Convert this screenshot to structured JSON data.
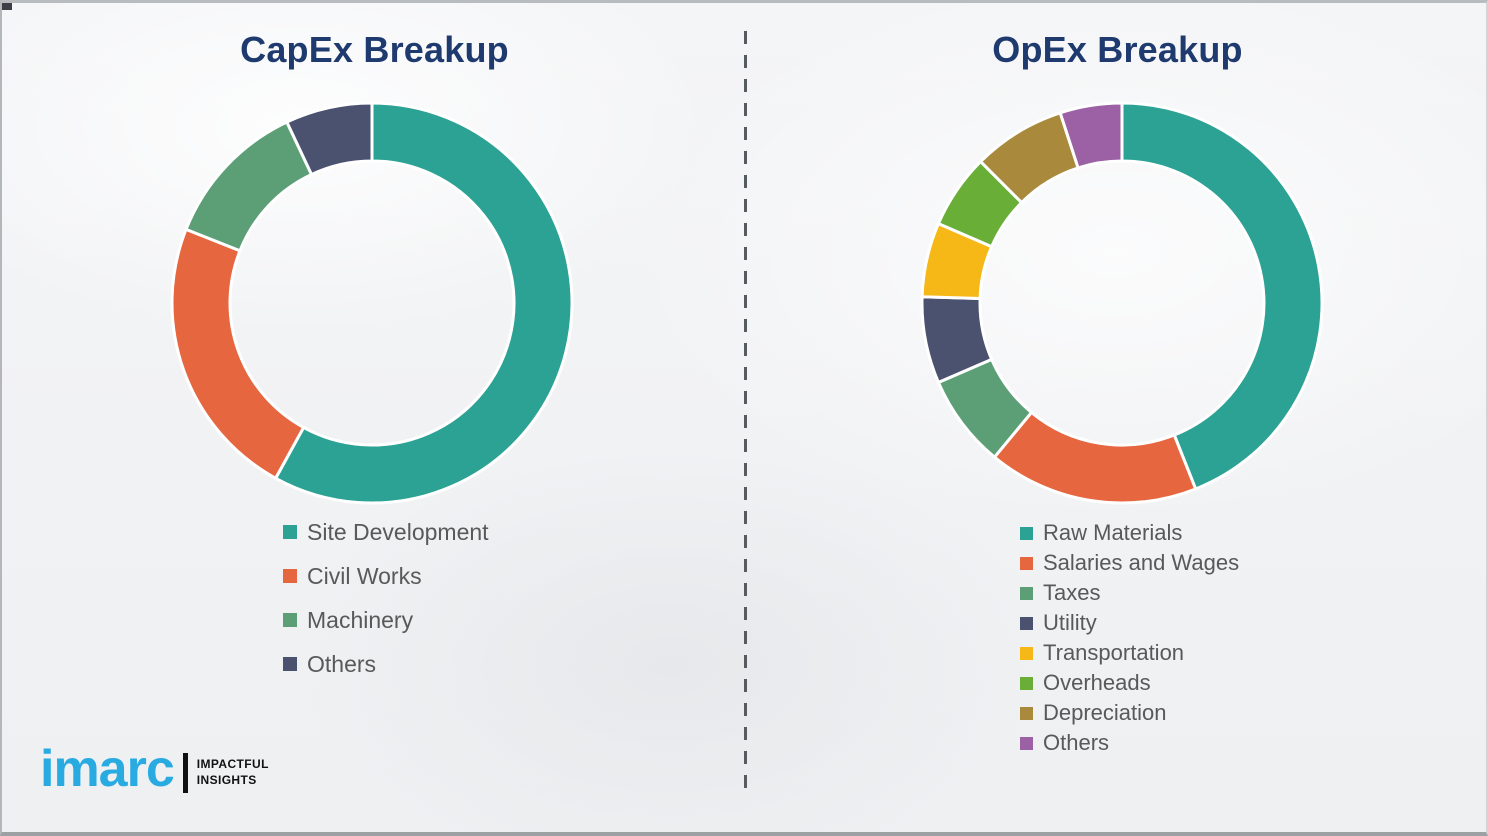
{
  "chart_data": [
    {
      "type": "pie",
      "variant": "donut",
      "title": "CapEx Breakup",
      "unit": "%",
      "legend_position": "below-left",
      "labels": [
        "Site Development",
        "Civil Works",
        "Machinery",
        "Others"
      ],
      "values": [
        58,
        23,
        12,
        7
      ],
      "colors": [
        "#2BA294",
        "#E6663F",
        "#5C9F76",
        "#4A526F"
      ]
    },
    {
      "type": "pie",
      "variant": "donut",
      "title": "OpEx Breakup",
      "unit": "%",
      "legend_position": "below-left",
      "labels": [
        "Raw Materials",
        "Salaries and Wages",
        "Taxes",
        "Utility",
        "Transportation",
        "Overheads",
        "Depreciation",
        "Others"
      ],
      "values": [
        44,
        17,
        7.5,
        7,
        6,
        6,
        7.5,
        5
      ],
      "colors": [
        "#2BA294",
        "#E6663F",
        "#5C9F76",
        "#4A526F",
        "#F6B817",
        "#68AE37",
        "#A98A3D",
        "#9C60A5"
      ]
    }
  ],
  "logo": {
    "brand": "imarc",
    "tagline_line1": "IMPACTFUL",
    "tagline_line2": "INSIGHTS",
    "brand_color": "#29ABE2"
  },
  "theme": {
    "title_color": "#1F3A6E",
    "legend_text_color": "#595959",
    "divider_color": "#565B60",
    "background_color": "#F2F3F5"
  }
}
